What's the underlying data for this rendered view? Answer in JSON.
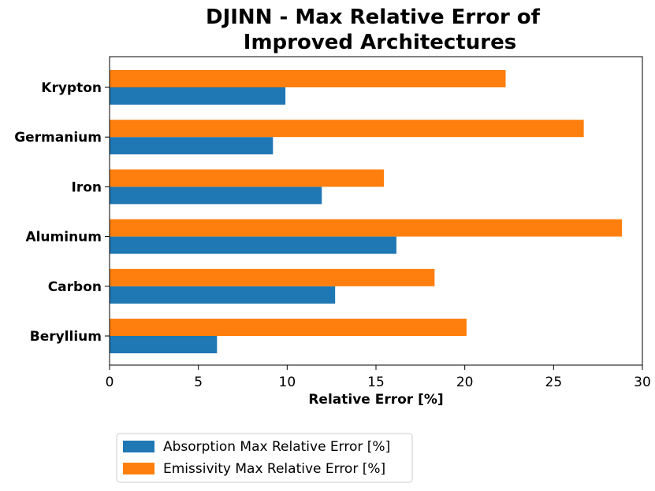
{
  "chart_data": {
    "type": "bar",
    "orientation": "horizontal",
    "title": "DJINN - Max Relative Error of\nImproved Architectures",
    "title_lines": [
      "DJINN - Max Relative Error of",
      "Improved Architectures"
    ],
    "categories": [
      "Beryllium",
      "Carbon",
      "Aluminum",
      "Iron",
      "Germanium",
      "Krypton"
    ],
    "series": [
      {
        "name": "Absorption Max Relative Error [%]",
        "color": "#1f77b4",
        "values": [
          6.05,
          12.7,
          16.15,
          11.95,
          9.2,
          9.9
        ]
      },
      {
        "name": "Emissivity Max Relative Error [%]",
        "color": "#ff7f0e",
        "values": [
          20.1,
          18.3,
          28.85,
          15.45,
          26.7,
          22.3
        ]
      }
    ],
    "xlabel": "Relative Error [%]",
    "ylabel": "",
    "xlim": [
      0,
      30
    ],
    "xticks": [
      0,
      5,
      10,
      15,
      20,
      25,
      30
    ],
    "grid": false,
    "legend_position": "bottom-left, below chart"
  }
}
